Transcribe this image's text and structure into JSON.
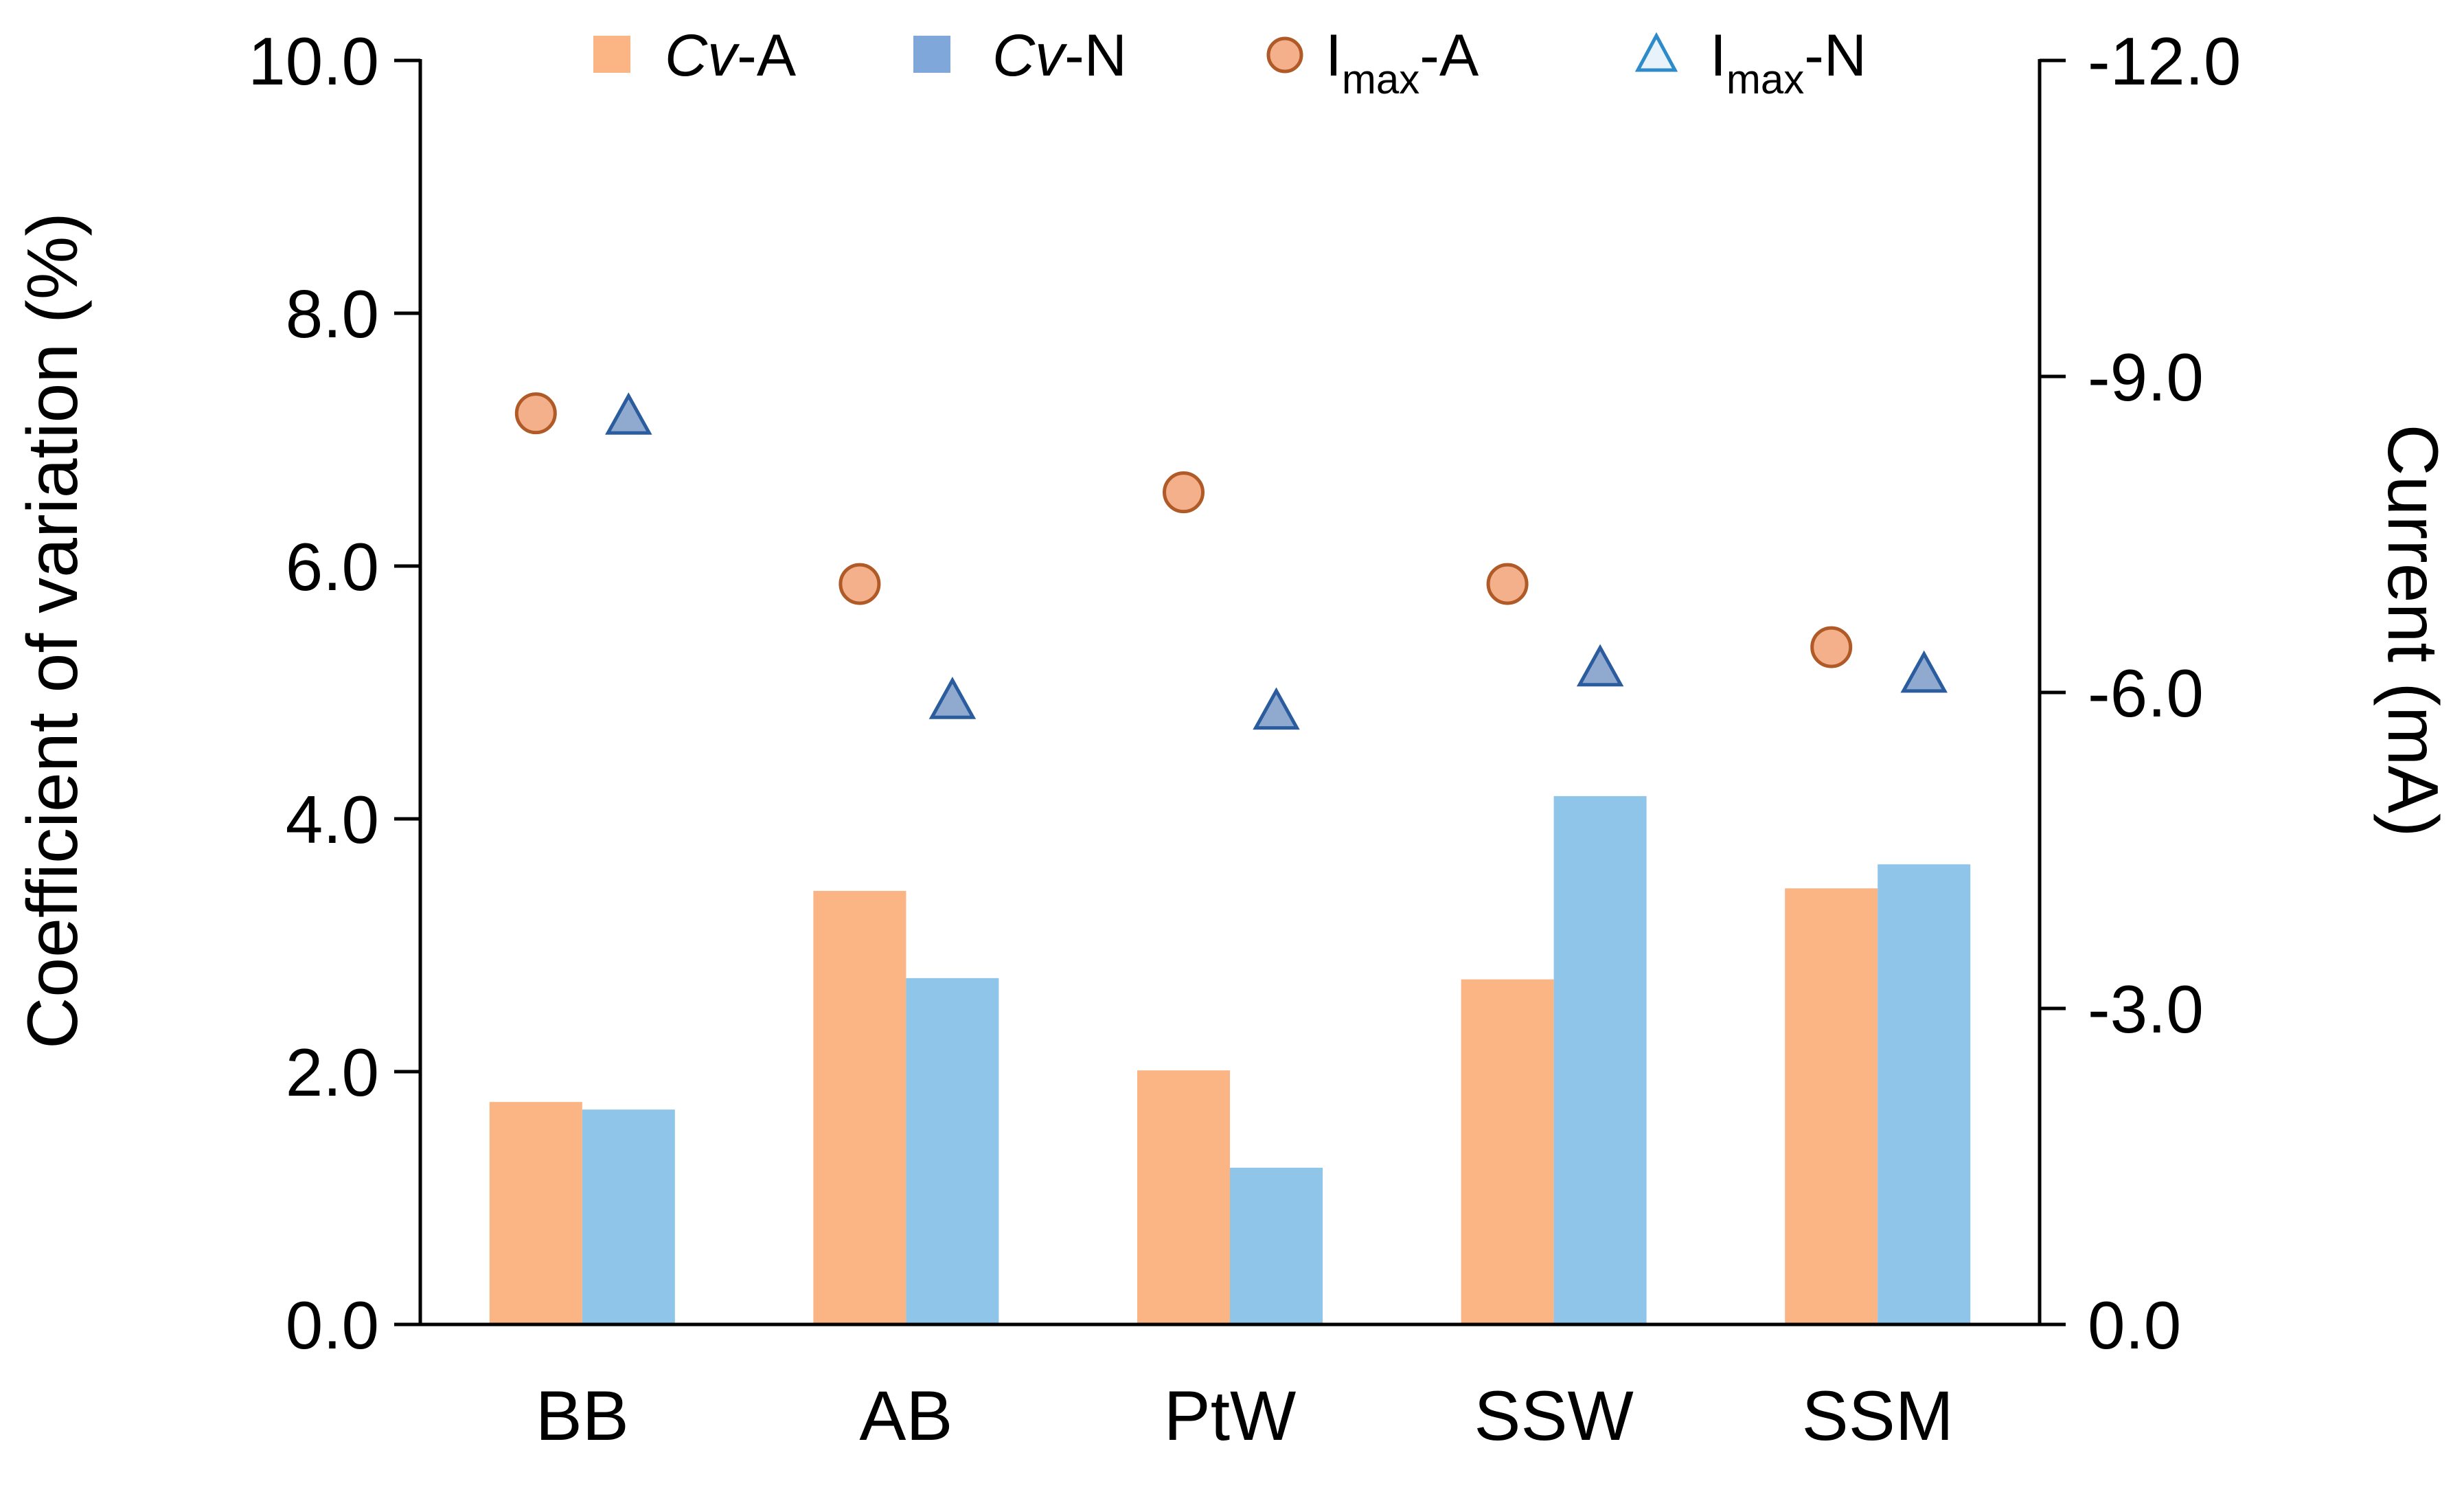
{
  "chart_data": {
    "type": "bar",
    "categories": [
      "BB",
      "AB",
      "PtW",
      "SSW",
      "SSM"
    ],
    "series": [
      {
        "name": "Cv-A",
        "name_prefix": "Cv",
        "name_suffix": "-A",
        "axis": "left",
        "kind": "bar",
        "color": "#FBB483",
        "values": [
          1.76,
          3.43,
          2.01,
          2.73,
          3.45
        ]
      },
      {
        "name": "Cv-N",
        "name_prefix": "Cv",
        "name_suffix": "-N",
        "axis": "left",
        "kind": "bar",
        "color": "#8EC5E8",
        "values": [
          1.7,
          2.74,
          1.24,
          4.18,
          3.64
        ]
      }
    ],
    "markers": [
      {
        "name": "Imax-A",
        "name_main": "I",
        "name_sub": "max",
        "name_suffix": "-A",
        "axis": "right",
        "kind": "circle",
        "fill": "#F3B08A",
        "stroke": "#B05A28",
        "values": [
          -8.65,
          -7.03,
          -7.9,
          -7.03,
          -6.43
        ]
      },
      {
        "name": "Imax-N",
        "name_main": "I",
        "name_sub": "max",
        "name_suffix": "-N",
        "axis": "right",
        "kind": "triangle",
        "fill": "#8FA9CF",
        "stroke": "#2A5C9E",
        "values": [
          -8.62,
          -5.92,
          -5.82,
          -6.23,
          -6.17
        ]
      }
    ],
    "legend_color_cv_n": "#7FA7D9",
    "legend_color_imax_n_stroke": "#2E8BC9",
    "legend_color_imax_n_fill": "#E8F2FA",
    "ylabel": "Coefficient of variation (%)",
    "ylabel_right": "Current (mA)",
    "ylim": [
      0,
      10
    ],
    "ylim_right": [
      0,
      -12
    ],
    "yticks": [
      "0.0",
      "2.0",
      "4.0",
      "6.0",
      "8.0",
      "10.0"
    ],
    "yticks_right": [
      "0.0",
      "-3.0",
      "-6.0",
      "-9.0",
      "-12.0"
    ],
    "legend_position": "top"
  }
}
